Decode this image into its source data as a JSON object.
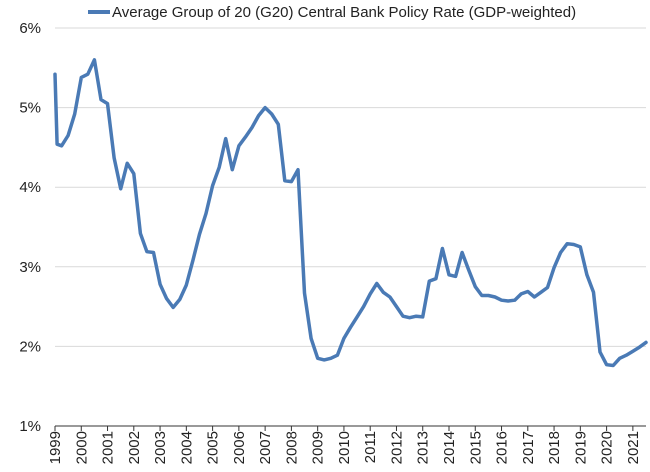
{
  "chart_data": {
    "type": "line",
    "title": "",
    "xlabel": "",
    "ylabel": "",
    "legend_position": "top",
    "grid": "horizontal",
    "line_color": "#4a7ab5",
    "grid_color": "#d9d9d9",
    "ylim": [
      1,
      6
    ],
    "xlim": [
      1999,
      2021.5
    ],
    "y_ticks": [
      1,
      2,
      3,
      4,
      5,
      6
    ],
    "y_tick_labels": [
      "1%",
      "2%",
      "3%",
      "4%",
      "5%",
      "6%"
    ],
    "x_ticks": [
      1999,
      2000,
      2001,
      2002,
      2003,
      2004,
      2005,
      2006,
      2007,
      2008,
      2009,
      2010,
      2011,
      2012,
      2013,
      2014,
      2015,
      2016,
      2017,
      2018,
      2019,
      2020,
      2021
    ],
    "x_tick_labels": [
      "1999",
      "2000",
      "2001",
      "2002",
      "2003",
      "2004",
      "2005",
      "2006",
      "2007",
      "2008",
      "2009",
      "2010",
      "2011",
      "2012",
      "2013",
      "2014",
      "2015",
      "2016",
      "2017",
      "2018",
      "2019",
      "2020",
      "2021"
    ],
    "series": [
      {
        "name": "Average Group of 20 (G20) Central Bank Policy Rate (GDP-weighted)",
        "x": [
          1999.0,
          1999.08,
          1999.25,
          1999.5,
          1999.75,
          2000.0,
          2000.25,
          2000.5,
          2000.75,
          2001.0,
          2001.25,
          2001.5,
          2001.75,
          2002.0,
          2002.25,
          2002.5,
          2002.75,
          2003.0,
          2003.25,
          2003.5,
          2003.75,
          2004.0,
          2004.25,
          2004.5,
          2004.75,
          2005.0,
          2005.25,
          2005.5,
          2005.75,
          2006.0,
          2006.25,
          2006.5,
          2006.75,
          2007.0,
          2007.25,
          2007.5,
          2007.75,
          2008.0,
          2008.25,
          2008.5,
          2008.75,
          2009.0,
          2009.25,
          2009.5,
          2009.75,
          2010.0,
          2010.25,
          2010.5,
          2010.75,
          2011.0,
          2011.25,
          2011.5,
          2011.75,
          2012.0,
          2012.25,
          2012.5,
          2012.75,
          2013.0,
          2013.25,
          2013.5,
          2013.75,
          2014.0,
          2014.25,
          2014.5,
          2014.75,
          2015.0,
          2015.25,
          2015.5,
          2015.75,
          2016.0,
          2016.25,
          2016.5,
          2016.75,
          2017.0,
          2017.25,
          2017.5,
          2017.75,
          2018.0,
          2018.25,
          2018.5,
          2018.75,
          2019.0,
          2019.25,
          2019.5,
          2019.75,
          2020.0,
          2020.25,
          2020.5,
          2020.75,
          2021.0,
          2021.25,
          2021.5
        ],
        "y": [
          5.42,
          4.54,
          4.52,
          4.65,
          4.92,
          5.38,
          5.42,
          5.6,
          5.1,
          5.05,
          4.37,
          3.98,
          4.3,
          4.17,
          3.42,
          3.19,
          3.18,
          2.78,
          2.6,
          2.49,
          2.59,
          2.77,
          3.08,
          3.41,
          3.67,
          4.02,
          4.25,
          4.61,
          4.22,
          4.52,
          4.63,
          4.75,
          4.9,
          5.0,
          4.92,
          4.79,
          4.08,
          4.07,
          4.22,
          2.67,
          2.1,
          1.85,
          1.83,
          1.85,
          1.89,
          2.1,
          2.24,
          2.37,
          2.5,
          2.66,
          2.79,
          2.68,
          2.62,
          2.5,
          2.38,
          2.36,
          2.38,
          2.37,
          2.82,
          2.85,
          3.23,
          2.9,
          2.88,
          3.18,
          2.96,
          2.75,
          2.64,
          2.64,
          2.62,
          2.58,
          2.57,
          2.58,
          2.66,
          2.69,
          2.62,
          2.68,
          2.74,
          2.99,
          3.18,
          3.29,
          3.28,
          3.25,
          2.9,
          2.68,
          1.93,
          1.77,
          1.76,
          1.85,
          1.89,
          1.94,
          1.99,
          2.05
        ]
      }
    ]
  }
}
